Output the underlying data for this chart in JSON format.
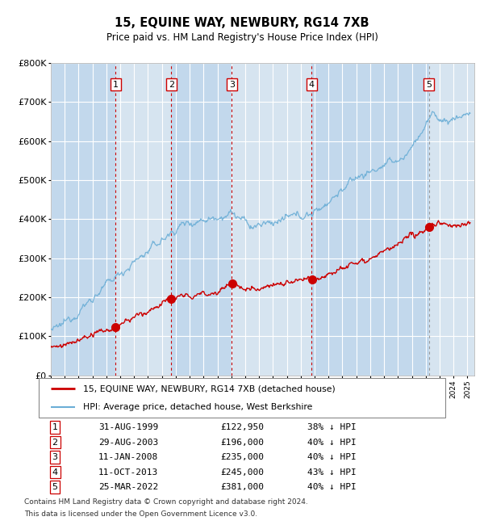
{
  "title": "15, EQUINE WAY, NEWBURY, RG14 7XB",
  "subtitle": "Price paid vs. HM Land Registry's House Price Index (HPI)",
  "transactions": [
    {
      "num": 1,
      "date": "31-AUG-1999",
      "price": 122950,
      "year": 1999.67,
      "pct": "38% ↓ HPI"
    },
    {
      "num": 2,
      "date": "29-AUG-2003",
      "price": 196000,
      "year": 2003.67,
      "pct": "40% ↓ HPI"
    },
    {
      "num": 3,
      "date": "11-JAN-2008",
      "price": 235000,
      "year": 2008.03,
      "pct": "40% ↓ HPI"
    },
    {
      "num": 4,
      "date": "11-OCT-2013",
      "price": 245000,
      "year": 2013.78,
      "pct": "43% ↓ HPI"
    },
    {
      "num": 5,
      "date": "25-MAR-2022",
      "price": 381000,
      "year": 2022.23,
      "pct": "40% ↓ HPI"
    }
  ],
  "legend_property": "15, EQUINE WAY, NEWBURY, RG14 7XB (detached house)",
  "legend_hpi": "HPI: Average price, detached house, West Berkshire",
  "footnote1": "Contains HM Land Registry data © Crown copyright and database right 2024.",
  "footnote2": "This data is licensed under the Open Government Licence v3.0.",
  "red_line_color": "#cc0000",
  "blue_line_color": "#6baed6",
  "vline_color": "#cc0000",
  "vline5_color": "#999999",
  "shade_color_light": "#d6e4f0",
  "shade_color_dark": "#c2d8ec",
  "ylim": [
    0,
    800000
  ],
  "xlim_start": 1995.0,
  "xlim_end": 2025.5
}
